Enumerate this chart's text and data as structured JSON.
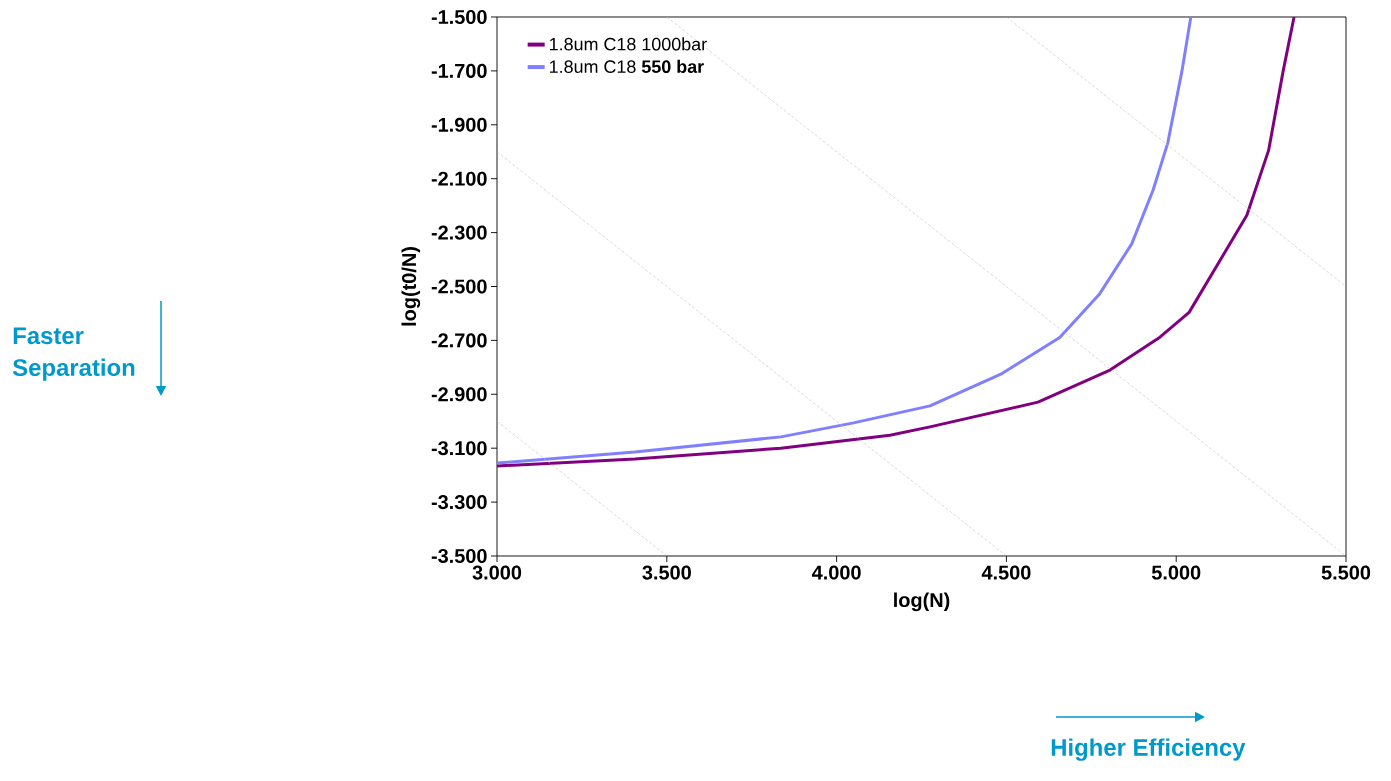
{
  "chart_data": {
    "type": "line",
    "xlabel": "log(N)",
    "ylabel": "log(t0/N)",
    "xlim": [
      3.0,
      5.5
    ],
    "ylim": [
      -3.5,
      -1.5
    ],
    "xticks": [
      {
        "value": 3.0,
        "label": "3.000"
      },
      {
        "value": 3.5,
        "label": "3.500"
      },
      {
        "value": 4.0,
        "label": "4.000"
      },
      {
        "value": 4.5,
        "label": "4.500"
      },
      {
        "value": 5.0,
        "label": "5.000"
      },
      {
        "value": 5.5,
        "label": "5.500"
      }
    ],
    "yticks": [
      {
        "value": -3.5,
        "label": "-3.500"
      },
      {
        "value": -3.3,
        "label": "-3.300"
      },
      {
        "value": -3.1,
        "label": "-3.100"
      },
      {
        "value": -2.9,
        "label": "-2.900"
      },
      {
        "value": -2.7,
        "label": "-2.700"
      },
      {
        "value": -2.5,
        "label": "-2.500"
      },
      {
        "value": -2.3,
        "label": "-2.300"
      },
      {
        "value": -2.1,
        "label": "-2.100"
      },
      {
        "value": -1.9,
        "label": "-1.900"
      },
      {
        "value": -1.7,
        "label": "-1.700"
      },
      {
        "value": -1.5,
        "label": "-1.500"
      }
    ],
    "legend": "top left",
    "marker": "none",
    "line_style": "solid",
    "series": [
      {
        "name": "1.8um C18 1000bar",
        "color": "#800080",
        "x": [
          3.0,
          3.406,
          3.836,
          4.157,
          4.275,
          4.593,
          4.805,
          4.952,
          5.038,
          5.208,
          5.272,
          5.315,
          5.347
        ],
        "values": [
          -3.166,
          -3.14,
          -3.1,
          -3.052,
          -3.021,
          -2.929,
          -2.81,
          -2.688,
          -2.596,
          -2.236,
          -1.995,
          -1.7,
          -1.5
        ]
      },
      {
        "name": "1.8um C18 **550 bar**",
        "color": "#8080ff",
        "x": [
          3.0,
          3.406,
          3.836,
          4.05,
          4.275,
          4.487,
          4.657,
          4.773,
          4.869,
          4.932,
          4.975,
          5.017,
          5.043
        ],
        "values": [
          -3.155,
          -3.114,
          -3.058,
          -3.006,
          -2.943,
          -2.823,
          -2.689,
          -2.53,
          -2.342,
          -2.142,
          -1.968,
          -1.7,
          -1.5
        ]
      },
      {
        "color": "#c0c0c0",
        "line_style": "dashed",
        "x": [
          3.0,
          3.5
        ],
        "values": [
          -3.0,
          -3.5
        ]
      },
      {
        "color": "#c0c0c0",
        "line_style": "dashed",
        "x": [
          3.0,
          4.5
        ],
        "values": [
          -2.0,
          -3.5
        ]
      },
      {
        "color": "#c0c0c0",
        "line_style": "dashed",
        "x": [
          3.5,
          5.5
        ],
        "values": [
          -1.5,
          -3.5
        ]
      },
      {
        "color": "#c0c0c0",
        "line_style": "dashed",
        "x": [
          4.5,
          5.5
        ],
        "values": [
          -1.5,
          -2.5
        ]
      }
    ],
    "annotations": [
      "Faster Separation",
      "Higher Efficiency"
    ]
  }
}
